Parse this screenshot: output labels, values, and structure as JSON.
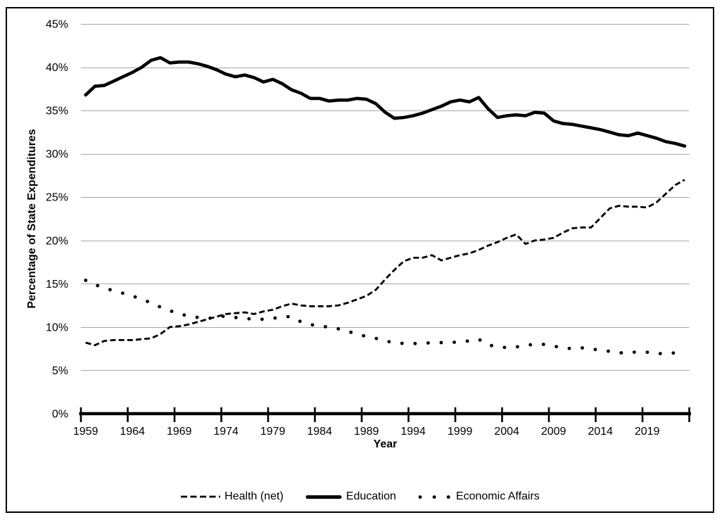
{
  "figure": {
    "background": "#ffffff",
    "border_color": "#000000"
  },
  "chart_data": {
    "type": "line",
    "title": "",
    "xlabel": "Year",
    "ylabel": "Percentage of State Expenditures",
    "grid": true,
    "legend_position": "bottom",
    "ylim": [
      0,
      45
    ],
    "y_tick_interval": 5,
    "y_tick_labels": [
      "0%",
      "5%",
      "10%",
      "15%",
      "20%",
      "25%",
      "30%",
      "35%",
      "40%",
      "45%"
    ],
    "x_tick_labels": [
      "1959",
      "1964",
      "1969",
      "1974",
      "1979",
      "1984",
      "1989",
      "1994",
      "1999",
      "2004",
      "2009",
      "2014",
      "2019"
    ],
    "years": [
      1959,
      1960,
      1961,
      1962,
      1963,
      1964,
      1965,
      1966,
      1967,
      1968,
      1969,
      1970,
      1971,
      1972,
      1973,
      1974,
      1975,
      1976,
      1977,
      1978,
      1979,
      1980,
      1981,
      1982,
      1983,
      1984,
      1985,
      1986,
      1987,
      1988,
      1989,
      1990,
      1991,
      1992,
      1993,
      1994,
      1995,
      1996,
      1997,
      1998,
      1999,
      2000,
      2001,
      2002,
      2003,
      2004,
      2005,
      2006,
      2007,
      2008,
      2009,
      2010,
      2011,
      2012,
      2013,
      2014,
      2015,
      2016,
      2017,
      2018,
      2019,
      2020,
      2021,
      2022,
      2023
    ],
    "series": [
      {
        "name": "Health (net)",
        "line_style": "dashed",
        "values": [
          8.2,
          7.9,
          8.4,
          8.5,
          8.5,
          8.5,
          8.6,
          8.7,
          9.2,
          10.0,
          10.1,
          10.3,
          10.6,
          10.9,
          11.2,
          11.5,
          11.6,
          11.7,
          11.5,
          11.8,
          12.0,
          12.4,
          12.7,
          12.5,
          12.4,
          12.4,
          12.4,
          12.5,
          12.8,
          13.2,
          13.6,
          14.3,
          15.5,
          16.6,
          17.6,
          18.0,
          18.0,
          18.3,
          17.7,
          18.0,
          18.3,
          18.5,
          18.9,
          19.4,
          19.8,
          20.3,
          20.7,
          19.6,
          20.0,
          20.1,
          20.3,
          20.9,
          21.4,
          21.5,
          21.5,
          22.6,
          23.7,
          24.0,
          23.9,
          23.9,
          23.8,
          24.4,
          25.4,
          26.4,
          27.0
        ]
      },
      {
        "name": "Education",
        "line_style": "solid",
        "values": [
          36.8,
          37.8,
          37.9,
          38.4,
          38.9,
          39.4,
          40.0,
          40.8,
          41.1,
          40.5,
          40.6,
          40.6,
          40.4,
          40.1,
          39.7,
          39.2,
          38.9,
          39.1,
          38.8,
          38.3,
          38.6,
          38.1,
          37.4,
          37.0,
          36.4,
          36.4,
          36.1,
          36.2,
          36.2,
          36.4,
          36.3,
          35.8,
          34.8,
          34.1,
          34.2,
          34.4,
          34.7,
          35.1,
          35.5,
          36.0,
          36.2,
          36.0,
          36.5,
          35.2,
          34.2,
          34.4,
          34.5,
          34.4,
          34.8,
          34.7,
          33.8,
          33.5,
          33.4,
          33.2,
          33.0,
          32.8,
          32.5,
          32.2,
          32.1,
          32.4,
          32.1,
          31.8,
          31.4,
          31.2,
          30.9
        ]
      },
      {
        "name": "Economic Affairs",
        "line_style": "dotted",
        "values": [
          15.4,
          14.9,
          14.5,
          14.2,
          13.9,
          13.6,
          13.2,
          12.8,
          12.3,
          11.9,
          11.5,
          11.3,
          11.1,
          11.0,
          11.1,
          11.3,
          11.1,
          11.0,
          10.9,
          10.9,
          11.0,
          11.2,
          11.2,
          10.6,
          10.3,
          10.1,
          10.0,
          9.8,
          9.5,
          9.2,
          8.9,
          8.7,
          8.4,
          8.2,
          8.1,
          8.1,
          8.1,
          8.2,
          8.2,
          8.2,
          8.3,
          8.4,
          8.6,
          7.9,
          7.8,
          7.6,
          7.7,
          7.9,
          8.0,
          8.0,
          7.8,
          7.6,
          7.5,
          7.6,
          7.5,
          7.3,
          7.2,
          7.0,
          7.1,
          7.1,
          7.1,
          6.9,
          7.0,
          7.0,
          7.0
        ]
      }
    ],
    "colors": {
      "line": "#000000",
      "grid": "#a6a6a6",
      "axis": "#000000"
    }
  }
}
